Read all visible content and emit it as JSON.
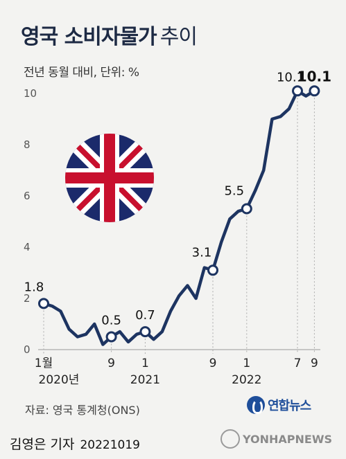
{
  "header": {
    "title_main": "영국 소비자물가",
    "title_sub": "추이",
    "subtitle": "전년 동월 대비, 단위: %"
  },
  "chart_data": {
    "type": "line",
    "title": "영국 소비자물가 추이",
    "subtitle": "전년 동월 대비, 단위: %",
    "ylim": [
      0,
      10
    ],
    "yticks": [
      "0",
      "2",
      "4",
      "6",
      "8",
      "10"
    ],
    "xticks": [
      {
        "month": "1",
        "sub": "2020년",
        "index": 0,
        "label": "1월"
      },
      {
        "month": "9",
        "index": 8,
        "label": "9"
      },
      {
        "month": "1",
        "sub": "2021",
        "index": 12,
        "label": "1"
      },
      {
        "month": "9",
        "index": 20,
        "label": "9"
      },
      {
        "month": "1",
        "sub": "2022",
        "index": 24,
        "label": "1"
      },
      {
        "month": "7",
        "index": 30,
        "label": "7"
      },
      {
        "month": "9",
        "index": 32,
        "label": "9"
      }
    ],
    "x": [
      "2020-01",
      "2020-02",
      "2020-03",
      "2020-04",
      "2020-05",
      "2020-06",
      "2020-07",
      "2020-08",
      "2020-09",
      "2020-10",
      "2020-11",
      "2020-12",
      "2021-01",
      "2021-02",
      "2021-03",
      "2021-04",
      "2021-05",
      "2021-06",
      "2021-07",
      "2021-08",
      "2021-09",
      "2021-10",
      "2021-11",
      "2021-12",
      "2022-01",
      "2022-02",
      "2022-03",
      "2022-04",
      "2022-05",
      "2022-06",
      "2022-07",
      "2022-08",
      "2022-09"
    ],
    "values": [
      1.8,
      1.7,
      1.5,
      0.8,
      0.5,
      0.6,
      1.0,
      0.2,
      0.5,
      0.7,
      0.3,
      0.6,
      0.7,
      0.4,
      0.7,
      1.5,
      2.1,
      2.5,
      2.0,
      3.2,
      3.1,
      4.2,
      5.1,
      5.4,
      5.5,
      6.2,
      7.0,
      9.0,
      9.1,
      9.4,
      10.1,
      9.9,
      10.1
    ],
    "labels": [
      {
        "index": 0,
        "text": "1.8"
      },
      {
        "index": 8,
        "text": "0.5"
      },
      {
        "index": 12,
        "text": "0.7"
      },
      {
        "index": 20,
        "text": "3.1"
      },
      {
        "index": 24,
        "text": "5.5"
      },
      {
        "index": 30,
        "text": "10.1"
      },
      {
        "index": 32,
        "text": "10.1",
        "emphasis": true
      }
    ],
    "line_color": "#1d3461",
    "grid": "dotted vertical guides at labeled months"
  },
  "footer": {
    "source": "자료: 영국 통계청(ONS)",
    "logo": "연합뉴스",
    "byline": "김영은 기자",
    "date": "20221019",
    "watermark": "YONHAPNEWS"
  },
  "icons": [
    "union-jack-flag-icon",
    "yonhap-logo-icon",
    "yonhap-watermark-icon"
  ]
}
